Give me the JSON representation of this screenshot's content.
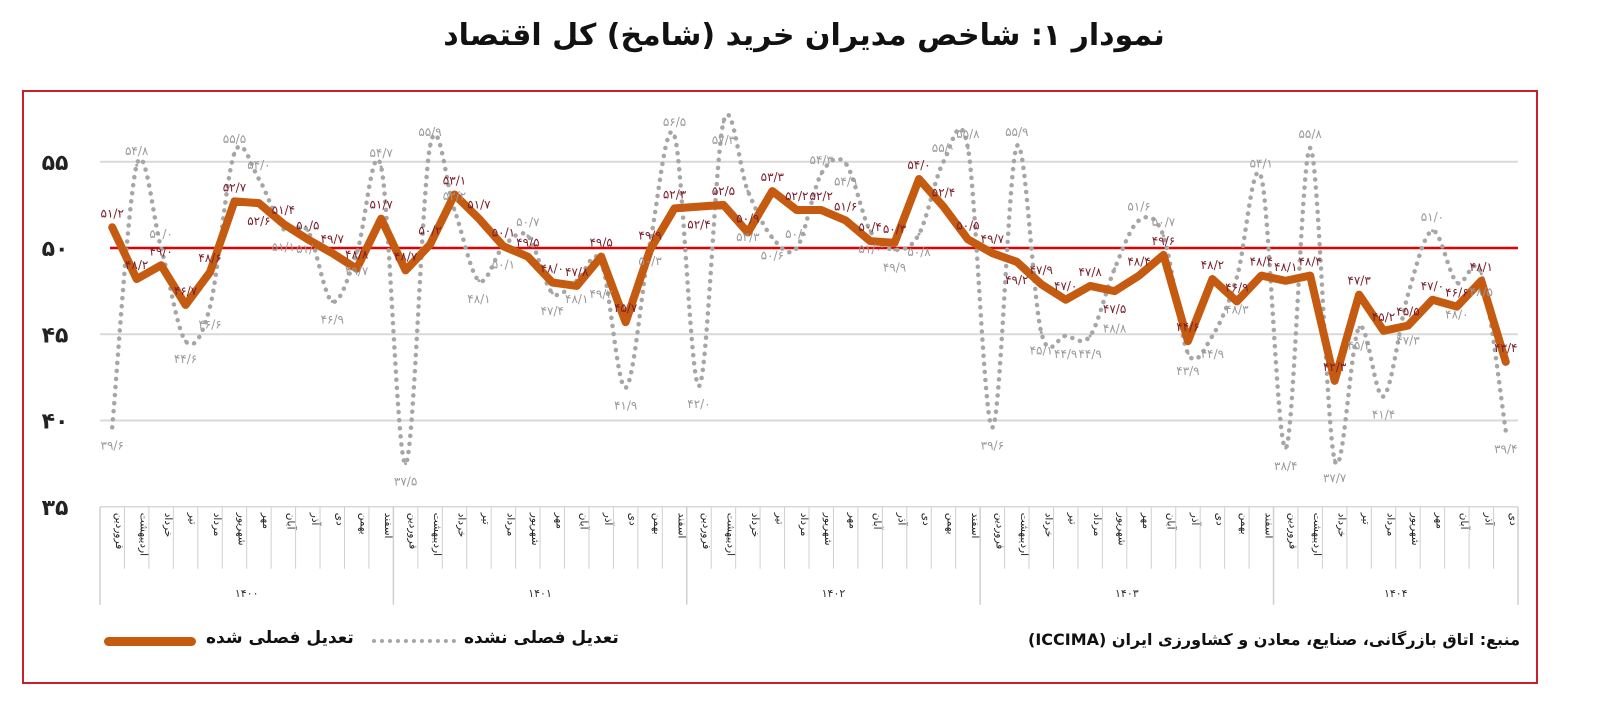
{
  "title": "نمودار ۱: شاخص مدیران خرید (شامخ) کل اقتصاد",
  "source": "منبع: اتاق بازرگانی، صنایع، معادن و کشاورزی ایران (ICCIMA)",
  "colors": {
    "adjusted": "#c55a11",
    "unadjusted": "#a6a6a6",
    "threshold": "#e00000",
    "frame": "#c8202a",
    "label_adjusted": "#7b1f2a",
    "label_unadjusted": "#9a9a9a"
  },
  "chart_data": {
    "type": "line",
    "title": "نمودار ۱: شاخص مدیران خرید (شامخ) کل اقتصاد",
    "ylim": [
      35,
      57
    ],
    "y_ticks": [
      35,
      40,
      45,
      50,
      55
    ],
    "y_tick_labels": [
      "۳۵",
      "۴۰",
      "۴۵",
      "۵۰",
      "۵۵"
    ],
    "threshold": 50,
    "grid": true,
    "legend_position": "bottom-left",
    "months": [
      "فروردین",
      "اردیبهشت",
      "خرداد",
      "تیر",
      "مرداد",
      "شهریور",
      "مهر",
      "آبان",
      "آذر",
      "دی",
      "بهمن",
      "اسفند"
    ],
    "years": [
      {
        "label": "۱۴۰۰",
        "months": 12
      },
      {
        "label": "۱۴۰۱",
        "months": 12
      },
      {
        "label": "۱۴۰۲",
        "months": 12
      },
      {
        "label": "۱۴۰۳",
        "months": 12
      },
      {
        "label": "۱۴۰۴",
        "months": 10
      }
    ],
    "series": [
      {
        "name": "تعدیل فصلی نشده",
        "style": "dotted",
        "values": [
          39.6,
          54.8,
          50.0,
          44.6,
          46.6,
          55.5,
          54.0,
          51.1,
          51.0,
          46.9,
          49.7,
          54.7,
          37.5,
          55.9,
          52.2,
          48.1,
          50.1,
          50.7,
          47.4,
          48.1,
          49.2,
          41.9,
          50.3,
          56.5,
          42.0,
          57.3,
          53.3,
          50.6,
          50.0,
          54.3,
          54.9,
          51.0,
          49.9,
          50.8,
          55.0,
          55.8,
          39.6,
          55.9,
          45.1,
          44.9,
          44.9,
          48.8,
          51.6,
          50.7,
          43.9,
          44.9,
          48.3,
          54.1,
          38.4,
          55.8,
          37.7,
          45.4,
          41.4,
          47.3,
          51.0,
          48.0,
          48.5,
          39.4
        ]
      },
      {
        "name": "تعدیل فصلی شده",
        "style": "solid",
        "values": [
          51.2,
          48.2,
          49.0,
          46.7,
          48.6,
          52.7,
          52.6,
          51.4,
          50.5,
          49.7,
          48.8,
          51.7,
          48.7,
          50.2,
          53.1,
          51.7,
          50.1,
          49.5,
          48.0,
          47.8,
          49.5,
          45.7,
          49.9,
          52.3,
          52.4,
          52.5,
          50.9,
          53.3,
          52.2,
          52.2,
          51.6,
          50.4,
          50.3,
          54.0,
          52.4,
          50.5,
          49.7,
          49.2,
          47.9,
          47.0,
          47.8,
          47.5,
          48.4,
          49.6,
          44.6,
          48.2,
          46.9,
          48.4,
          48.1,
          48.4,
          42.3,
          47.3,
          45.2,
          45.5,
          47.0,
          46.6,
          48.1,
          43.4
        ]
      }
    ]
  }
}
